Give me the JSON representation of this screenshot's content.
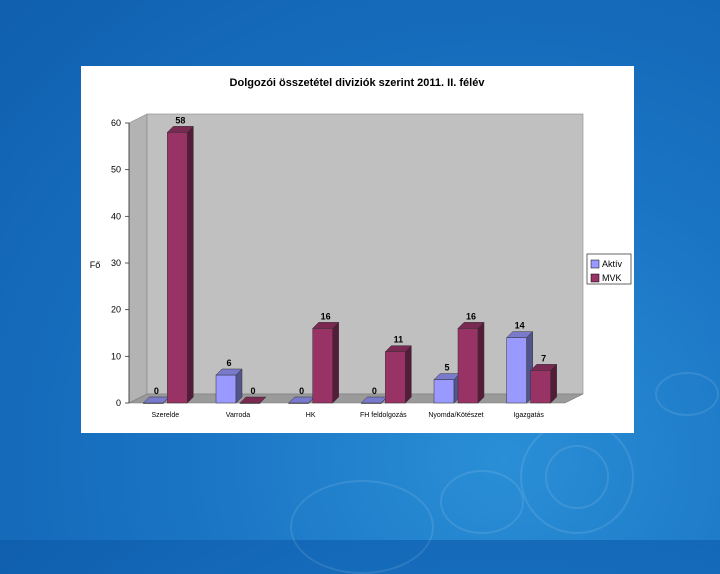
{
  "chart_data": {
    "type": "bar",
    "title": "Dolgozói összetétel diviziók szerint 2011. II. félév",
    "ylabel": "Fő",
    "xlabel": "",
    "ylim": [
      0,
      60
    ],
    "yticks": [
      0,
      10,
      20,
      30,
      40,
      50,
      60
    ],
    "grid": false,
    "legend_position": "right",
    "categories": [
      "Szerelde",
      "Varroda",
      "HK",
      "FH feldolgozás",
      "Nyomda/Kötészet",
      "Igazgatás"
    ],
    "series": [
      {
        "name": "Aktív",
        "values": [
          0,
          6,
          0,
          0,
          5,
          14
        ],
        "color": "#9999ff"
      },
      {
        "name": "MVK",
        "values": [
          58,
          0,
          16,
          11,
          16,
          7
        ],
        "color": "#993366"
      }
    ]
  }
}
